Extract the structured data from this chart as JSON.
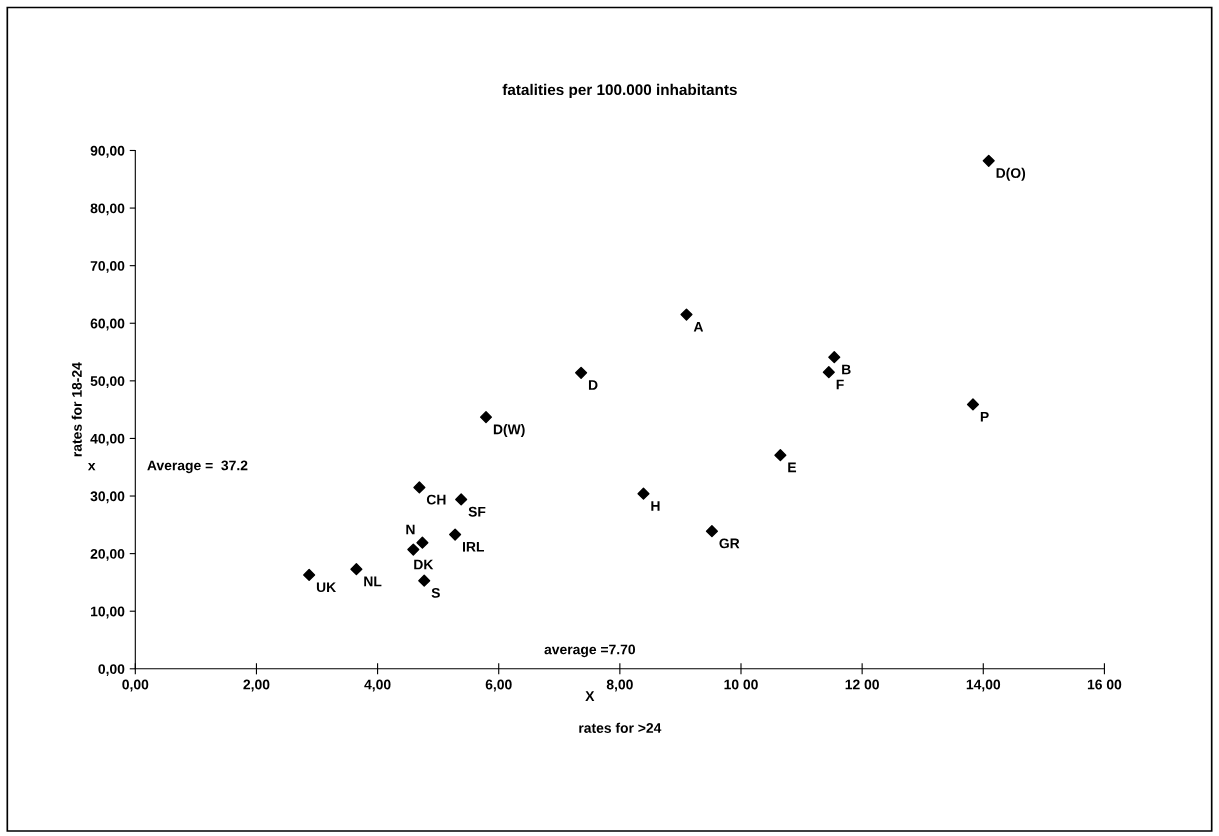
{
  "chart_data": {
    "type": "scatter",
    "title": "fatalities per 100.000 inhabitants",
    "xlabel": "rates for >24",
    "ylabel": "rates for 18-24",
    "x": [
      2.87,
      3.65,
      4.74,
      4.59,
      4.77,
      4.69,
      5.38,
      5.28,
      5.79,
      7.36,
      9.1,
      8.39,
      9.52,
      10.65,
      11.54,
      11.45,
      13.83,
      14.09
    ],
    "series": [
      {
        "color": "#000000",
        "values": [
          16.3,
          17.3,
          21.9,
          20.7,
          15.3,
          31.5,
          29.4,
          23.3,
          43.7,
          51.4,
          61.5,
          30.4,
          23.9,
          37.1,
          54.1,
          51.5,
          45.9,
          88.2
        ]
      }
    ],
    "marker": "diamond",
    "annotations": [
      {
        "text": "UK",
        "x": 2.87,
        "y": 16.3
      },
      {
        "text": "NL",
        "x": 3.65,
        "y": 17.3
      },
      {
        "text": "N",
        "x": 4.74,
        "y": 21.9
      },
      {
        "text": "DK",
        "x": 4.59,
        "y": 20.7
      },
      {
        "text": "S",
        "x": 4.77,
        "y": 15.3
      },
      {
        "text": "CH",
        "x": 4.69,
        "y": 31.5
      },
      {
        "text": "SF",
        "x": 5.38,
        "y": 29.4
      },
      {
        "text": "IRL",
        "x": 5.28,
        "y": 23.3
      },
      {
        "text": "D(W)",
        "x": 5.79,
        "y": 43.7
      },
      {
        "text": "D",
        "x": 7.36,
        "y": 51.4
      },
      {
        "text": "A",
        "x": 9.1,
        "y": 61.5
      },
      {
        "text": "H",
        "x": 8.39,
        "y": 30.4
      },
      {
        "text": "GR",
        "x": 9.52,
        "y": 23.9
      },
      {
        "text": "E",
        "x": 10.65,
        "y": 37.1
      },
      {
        "text": "B",
        "x": 11.54,
        "y": 54.1
      },
      {
        "text": "F",
        "x": 11.45,
        "y": 51.5
      },
      {
        "text": "P",
        "x": 13.83,
        "y": 45.9
      },
      {
        "text": "D(O)",
        "x": 14.09,
        "y": 88.2
      },
      "x",
      "Average =  37.2",
      "X",
      "average =7.70"
    ],
    "xlim": [
      0,
      16
    ],
    "ylim": [
      0,
      90
    ],
    "xticks": [
      {
        "value": 0,
        "label": "0,00"
      },
      {
        "value": 2,
        "label": "2,00"
      },
      {
        "value": 4,
        "label": "4,00"
      },
      {
        "value": 6,
        "label": "6,00"
      },
      {
        "value": 8,
        "label": "8,00"
      },
      {
        "value": 10,
        "label": "10 00"
      },
      {
        "value": 12,
        "label": "12 00"
      },
      {
        "value": 14,
        "label": "14,00"
      },
      {
        "value": 16,
        "label": "16 00"
      }
    ],
    "yticks": [
      {
        "value": 0,
        "label": "0,00"
      },
      {
        "value": 10,
        "label": "10,00"
      },
      {
        "value": 20,
        "label": "20,00"
      },
      {
        "value": 30,
        "label": "30,00"
      },
      {
        "value": 40,
        "label": "40,00"
      },
      {
        "value": 50,
        "label": "50,00"
      },
      {
        "value": 60,
        "label": "60,00"
      },
      {
        "value": 70,
        "label": "70,00"
      },
      {
        "value": 80,
        "label": "80,00"
      },
      {
        "value": 90,
        "label": "90,00"
      }
    ]
  }
}
